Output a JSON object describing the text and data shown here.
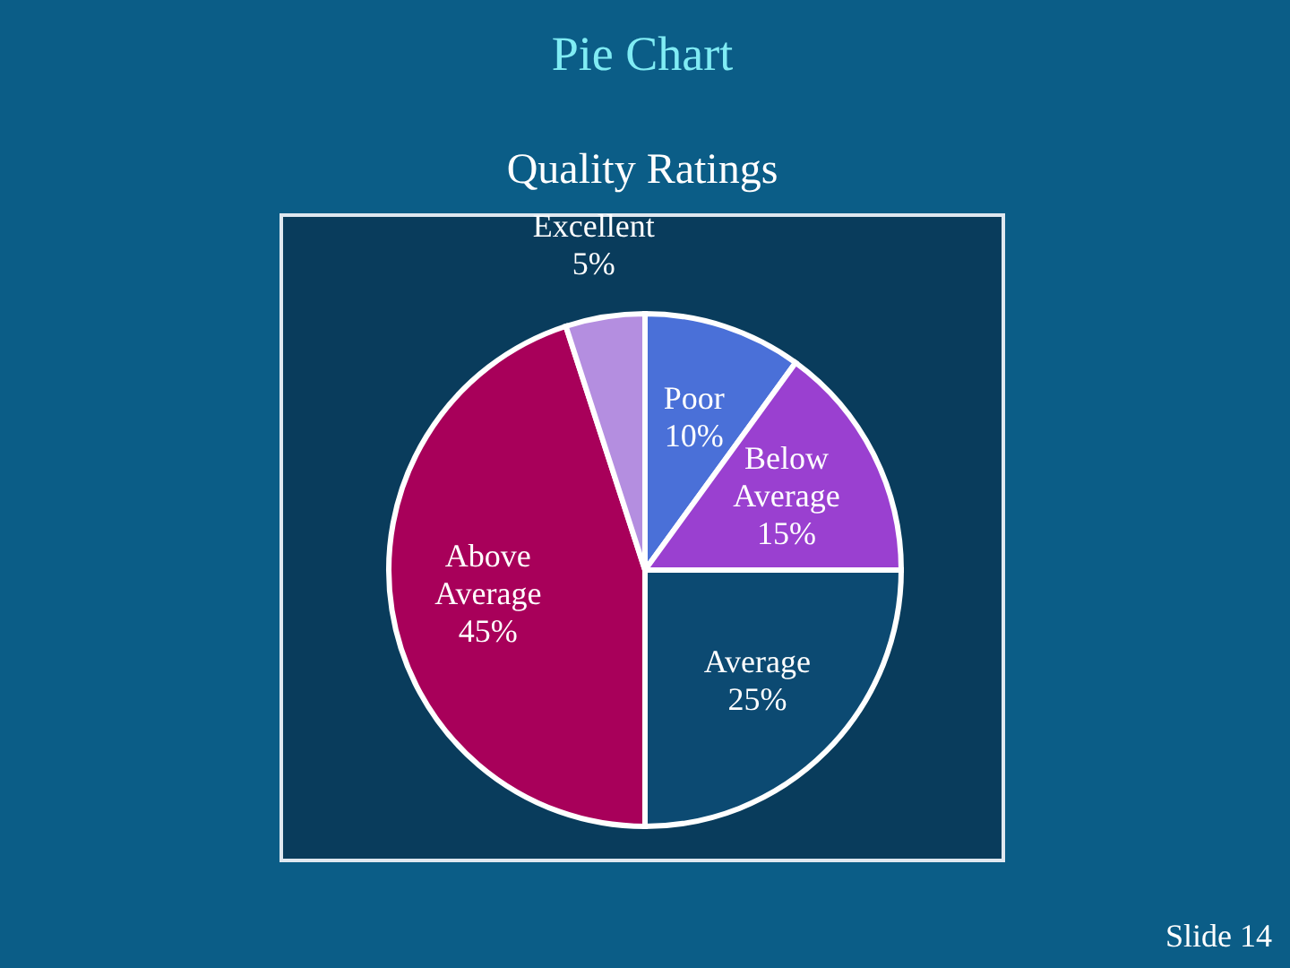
{
  "chart_data": {
    "type": "pie",
    "title": "Pie Chart",
    "subtitle": "Quality Ratings",
    "categories": [
      "Poor",
      "Below Average",
      "Average",
      "Above Average",
      "Excellent"
    ],
    "values": [
      10,
      15,
      25,
      45,
      5
    ],
    "colors": [
      "#4a70d8",
      "#9a40d0",
      "#0c4a72",
      "#a8005a",
      "#b48ee0"
    ],
    "value_labels": [
      "10%",
      "15%",
      "25%",
      "45%",
      "5%"
    ],
    "annotations": [
      "Slide 14"
    ]
  }
}
